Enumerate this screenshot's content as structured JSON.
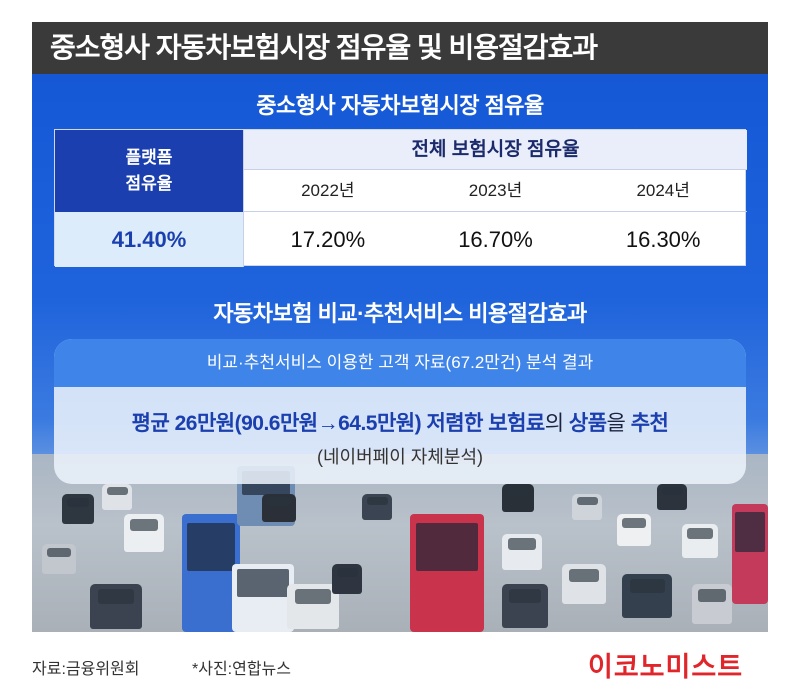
{
  "title": "중소형사 자동차보험시장 점유율 및 비용절감효과",
  "section1": {
    "heading": "중소형사 자동차보험시장 점유율",
    "platform_label_line1": "플랫폼",
    "platform_label_line2": "점유율",
    "whole_market_label": "전체 보험시장 점유율",
    "years": [
      "2022년",
      "2023년",
      "2024년"
    ],
    "platform_value": "41.40%",
    "market_values": [
      "17.20%",
      "16.70%",
      "16.30%"
    ]
  },
  "section2": {
    "heading": "자동차보험 비교·추천서비스 비용절감효과",
    "analysis_header": "비교·추천서비스 이용한 고객 자료(67.2만건) 분석 결과",
    "main_part1": "평균 26만원(90.6만원→64.5만원) 저렴한 보험료",
    "main_part2": "의",
    "main_part3": " 상품",
    "main_part4": "을",
    "main_part5": " 추천",
    "sub_text": "(네이버페이 자체분석)"
  },
  "footer": {
    "source": "자료:금융위원회",
    "photo_credit": "*사진:연합뉴스",
    "brand": "이코노미스트"
  }
}
